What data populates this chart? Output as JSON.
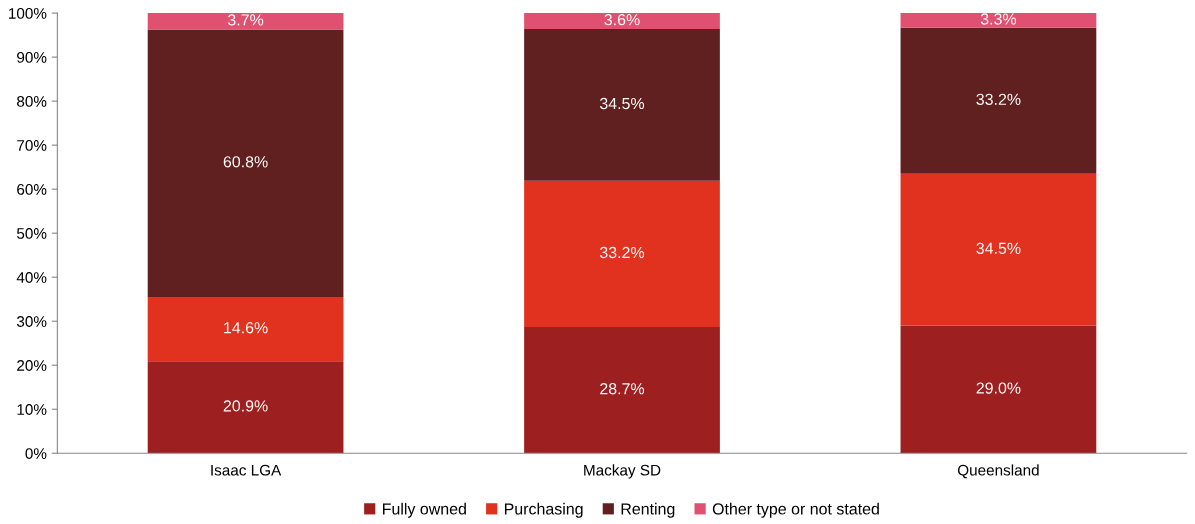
{
  "chart_data": {
    "type": "bar",
    "stacked": true,
    "categories": [
      "Isaac LGA",
      "Mackay SD",
      "Queensland"
    ],
    "series": [
      {
        "name": "Fully owned",
        "color": "#9e1f1f",
        "values": [
          20.9,
          28.7,
          29.0
        ],
        "value_labels": [
          "20.9%",
          "28.7%",
          "29.0%"
        ]
      },
      {
        "name": "Purchasing",
        "color": "#e0321f",
        "values": [
          14.6,
          33.2,
          34.5
        ],
        "value_labels": [
          "14.6%",
          "33.2%",
          "34.5%"
        ]
      },
      {
        "name": "Renting",
        "color": "#612020",
        "values": [
          60.8,
          34.5,
          33.2
        ],
        "value_labels": [
          "60.8%",
          "34.5%",
          "33.2%"
        ]
      },
      {
        "name": "Other type or not stated",
        "color": "#e05070",
        "values": [
          3.7,
          3.6,
          3.3
        ],
        "value_labels": [
          "3.7%",
          "3.6%",
          "3.3%"
        ]
      }
    ],
    "ylim": [
      0,
      100
    ],
    "yticks": [
      {
        "value": 0,
        "label": "0%"
      },
      {
        "value": 10,
        "label": "10%"
      },
      {
        "value": 20,
        "label": "20%"
      },
      {
        "value": 30,
        "label": "30%"
      },
      {
        "value": 40,
        "label": "40%"
      },
      {
        "value": 50,
        "label": "50%"
      },
      {
        "value": 60,
        "label": "60%"
      },
      {
        "value": 70,
        "label": "70%"
      },
      {
        "value": 80,
        "label": "80%"
      },
      {
        "value": 90,
        "label": "90%"
      },
      {
        "value": 100,
        "label": "100%"
      }
    ],
    "grid": false,
    "legend": "bottom"
  }
}
